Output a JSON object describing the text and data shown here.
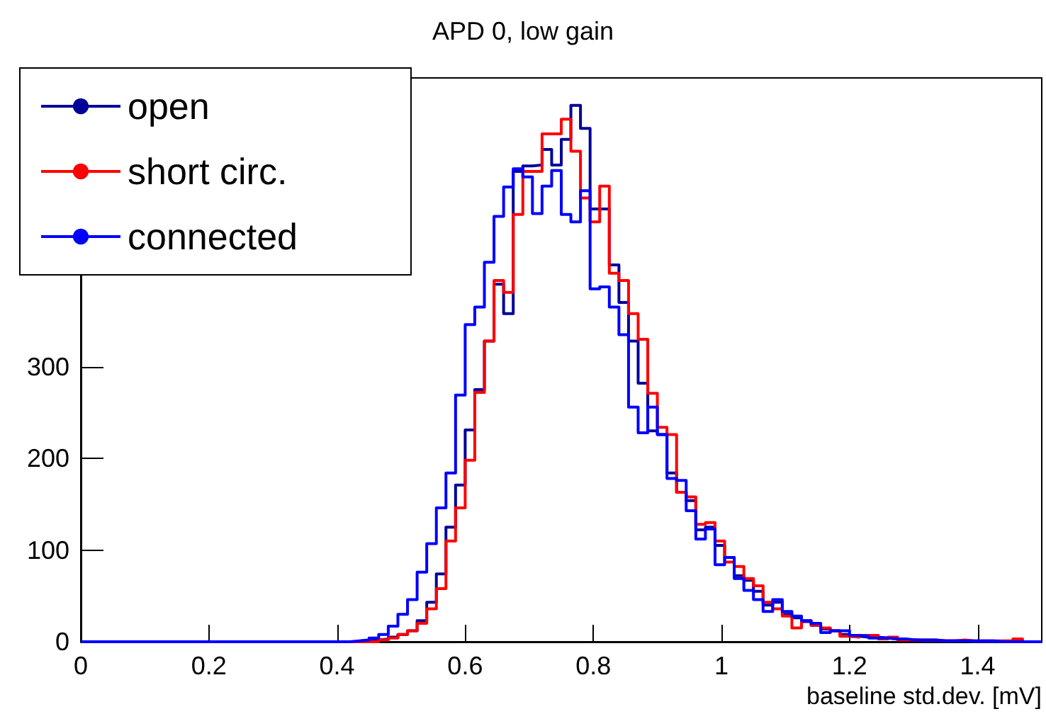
{
  "chart_data": {
    "type": "histogram",
    "title": "APD 0, low gain",
    "xlabel": "baseline std.dev. [mV]",
    "bins": [
      0,
      0.015,
      0.03,
      0.045,
      0.06,
      0.075,
      0.09,
      0.105,
      0.12,
      0.135,
      0.15,
      0.165,
      0.18,
      0.195,
      0.21,
      0.225,
      0.24,
      0.255,
      0.27,
      0.285,
      0.3,
      0.315,
      0.33,
      0.345,
      0.36,
      0.375,
      0.39,
      0.405,
      0.42,
      0.435,
      0.45,
      0.465,
      0.48,
      0.495,
      0.51,
      0.525,
      0.54,
      0.555,
      0.57,
      0.585,
      0.6,
      0.615,
      0.63,
      0.645,
      0.66,
      0.675,
      0.69,
      0.705,
      0.72,
      0.735,
      0.75,
      0.765,
      0.78,
      0.795,
      0.81,
      0.825,
      0.84,
      0.855,
      0.87,
      0.885,
      0.9,
      0.915,
      0.93,
      0.945,
      0.96,
      0.975,
      0.99,
      1.005,
      1.02,
      1.035,
      1.05,
      1.065,
      1.08,
      1.095,
      1.11,
      1.125,
      1.14,
      1.155,
      1.17,
      1.185,
      1.2,
      1.215,
      1.23,
      1.245,
      1.26,
      1.275,
      1.29,
      1.305,
      1.32,
      1.335,
      1.35,
      1.365,
      1.38,
      1.395,
      1.41,
      1.425,
      1.44,
      1.455,
      1.47,
      1.485,
      1.5
    ],
    "series": [
      {
        "name": "open",
        "color": "#000099",
        "values": [
          0,
          0,
          0,
          0,
          0,
          0,
          0,
          0,
          0,
          0,
          0,
          0,
          0,
          0,
          0,
          0,
          0,
          0,
          0,
          0,
          0,
          0,
          0,
          0,
          0,
          0,
          0,
          0,
          0,
          1,
          2,
          3,
          5,
          8,
          12,
          23,
          43,
          74,
          125,
          171,
          231,
          275,
          328,
          390,
          358,
          513,
          519,
          520,
          537,
          520,
          548,
          585,
          560,
          472,
          472,
          411,
          370,
          328,
          282,
          230,
          226,
          184,
          163,
          154,
          122,
          125,
          105,
          92,
          72,
          67,
          55,
          40,
          43,
          30,
          26,
          22,
          18,
          14,
          12,
          8,
          6,
          5,
          5,
          4,
          3,
          2,
          2,
          1,
          1,
          1,
          1,
          1,
          0,
          0,
          0,
          0,
          0,
          0,
          0,
          0
        ]
      },
      {
        "name": "short circ.",
        "color": "#ff0000",
        "values": [
          0,
          0,
          0,
          0,
          0,
          0,
          0,
          0,
          0,
          0,
          0,
          0,
          0,
          0,
          0,
          0,
          0,
          0,
          0,
          0,
          0,
          0,
          0,
          0,
          0,
          0,
          0,
          0,
          0,
          0,
          0,
          2,
          4,
          8,
          12,
          20,
          36,
          58,
          110,
          146,
          198,
          272,
          328,
          394,
          381,
          466,
          513,
          513,
          554,
          554,
          570,
          535,
          484,
          458,
          497,
          402,
          394,
          358,
          330,
          271,
          234,
          226,
          163,
          158,
          128,
          130,
          110,
          87,
          82,
          69,
          61,
          43,
          36,
          28,
          15,
          23,
          18,
          15,
          12,
          6,
          5,
          7,
          7,
          3,
          5,
          2,
          2,
          2,
          2,
          1,
          1,
          2,
          1,
          1,
          1,
          1,
          1,
          3,
          0,
          0
        ]
      },
      {
        "name": "connected",
        "color": "#0000ff",
        "values": [
          0,
          0,
          0,
          0,
          0,
          0,
          0,
          0,
          0,
          0,
          0,
          0,
          0,
          0,
          0,
          0,
          0,
          0,
          0,
          0,
          0,
          0,
          0,
          0,
          0,
          0,
          0,
          0,
          1,
          2,
          4,
          8,
          17,
          30,
          46,
          76,
          107,
          146,
          184,
          269,
          346,
          365,
          414,
          464,
          496,
          516,
          507,
          467,
          497,
          514,
          466,
          458,
          492,
          385,
          387,
          365,
          335,
          256,
          228,
          256,
          226,
          178,
          176,
          143,
          112,
          123,
          84,
          92,
          69,
          56,
          46,
          33,
          46,
          33,
          28,
          23,
          20,
          10,
          12,
          12,
          7,
          6,
          4,
          4,
          3,
          3,
          2,
          2,
          2,
          1,
          1,
          1,
          1,
          1,
          1,
          0,
          0,
          0,
          0,
          0
        ]
      }
    ],
    "xlim": [
      0,
      1.5
    ],
    "xticks": [
      0,
      0.2,
      0.4,
      0.6,
      0.8,
      1,
      1.2,
      1.4
    ],
    "ylim": [
      0,
      615
    ],
    "yticks": [
      0,
      100,
      200,
      300
    ],
    "legend": "top left"
  }
}
